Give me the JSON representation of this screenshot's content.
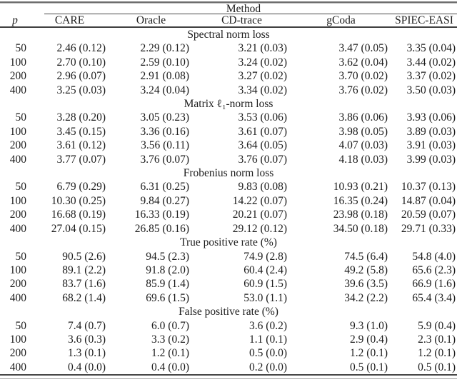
{
  "table": {
    "method_header": "Method",
    "columns": [
      "p",
      "CARE",
      "Oracle",
      "CD-trace",
      "gCoda",
      "SPIEC-EASI"
    ],
    "sections": [
      {
        "title": "Spectral norm loss",
        "rows": [
          {
            "p": "50",
            "values": [
              "2.46 (0.12)",
              "2.29 (0.12)",
              "3.21 (0.03)",
              "3.47 (0.05)",
              "3.35 (0.04)"
            ]
          },
          {
            "p": "100",
            "values": [
              "2.70 (0.10)",
              "2.59 (0.10)",
              "3.24 (0.02)",
              "3.62 (0.04)",
              "3.44 (0.02)"
            ]
          },
          {
            "p": "200",
            "values": [
              "2.96 (0.07)",
              "2.91 (0.08)",
              "3.27 (0.02)",
              "3.70 (0.02)",
              "3.37 (0.02)"
            ]
          },
          {
            "p": "400",
            "values": [
              "3.25 (0.03)",
              "3.24 (0.04)",
              "3.34 (0.02)",
              "3.76 (0.02)",
              "3.50 (0.03)"
            ]
          }
        ]
      },
      {
        "title": "Matrix ℓ₁-norm loss",
        "rows": [
          {
            "p": "50",
            "values": [
              "3.28 (0.20)",
              "3.05 (0.23)",
              "3.53 (0.06)",
              "3.86 (0.06)",
              "3.93 (0.06)"
            ]
          },
          {
            "p": "100",
            "values": [
              "3.45 (0.15)",
              "3.36 (0.16)",
              "3.61 (0.07)",
              "3.98 (0.05)",
              "3.89 (0.03)"
            ]
          },
          {
            "p": "200",
            "values": [
              "3.61 (0.12)",
              "3.56 (0.11)",
              "3.64 (0.05)",
              "4.07 (0.03)",
              "3.91 (0.03)"
            ]
          },
          {
            "p": "400",
            "values": [
              "3.77 (0.07)",
              "3.76 (0.07)",
              "3.76 (0.07)",
              "4.18 (0.03)",
              "3.99 (0.03)"
            ]
          }
        ]
      },
      {
        "title": "Frobenius norm loss",
        "rows": [
          {
            "p": "50",
            "values": [
              "6.79 (0.29)",
              "6.31 (0.25)",
              "9.83 (0.08)",
              "10.93 (0.21)",
              "10.37 (0.13)"
            ]
          },
          {
            "p": "100",
            "values": [
              "10.30 (0.25)",
              "9.84 (0.27)",
              "14.22 (0.07)",
              "16.35 (0.24)",
              "14.87 (0.04)"
            ]
          },
          {
            "p": "200",
            "values": [
              "16.68 (0.19)",
              "16.33 (0.19)",
              "20.21 (0.07)",
              "23.98 (0.18)",
              "20.59 (0.07)"
            ]
          },
          {
            "p": "400",
            "values": [
              "27.04 (0.15)",
              "26.85 (0.16)",
              "29.12 (0.12)",
              "34.50 (0.18)",
              "29.71 (0.33)"
            ]
          }
        ]
      },
      {
        "title": "True positive rate (%)",
        "rows": [
          {
            "p": "50",
            "values": [
              "90.5 (2.6)",
              "94.5 (2.3)",
              "74.9 (2.8)",
              "74.5 (6.4)",
              "54.8 (4.0)"
            ]
          },
          {
            "p": "100",
            "values": [
              "89.1 (2.2)",
              "91.8 (2.0)",
              "60.4 (2.4)",
              "49.2 (5.8)",
              "65.6 (2.3)"
            ]
          },
          {
            "p": "200",
            "values": [
              "83.7 (1.6)",
              "85.9 (1.4)",
              "60.9 (1.5)",
              "39.6 (3.5)",
              "66.9 (1.6)"
            ]
          },
          {
            "p": "400",
            "values": [
              "68.2 (1.4)",
              "69.6 (1.5)",
              "53.0 (1.1)",
              "34.2 (2.2)",
              "65.4 (3.4)"
            ]
          }
        ]
      },
      {
        "title": "False positive rate (%)",
        "rows": [
          {
            "p": "50",
            "values": [
              "7.4 (0.7)",
              "6.0 (0.7)",
              "3.6 (0.2)",
              "9.3 (1.0)",
              "5.9 (0.4)"
            ]
          },
          {
            "p": "100",
            "values": [
              "3.6 (0.3)",
              "3.3 (0.2)",
              "1.1 (0.1)",
              "2.9 (0.4)",
              "2.3 (0.1)"
            ]
          },
          {
            "p": "200",
            "values": [
              "1.3 (0.1)",
              "1.2 (0.1)",
              "0.5 (0.0)",
              "1.2 (0.1)",
              "1.2 (0.1)"
            ]
          },
          {
            "p": "400",
            "values": [
              "0.4 (0.0)",
              "0.4 (0.0)",
              "0.2 (0.0)",
              "0.5 (0.1)",
              "0.5 (0.1)"
            ]
          }
        ]
      }
    ]
  }
}
